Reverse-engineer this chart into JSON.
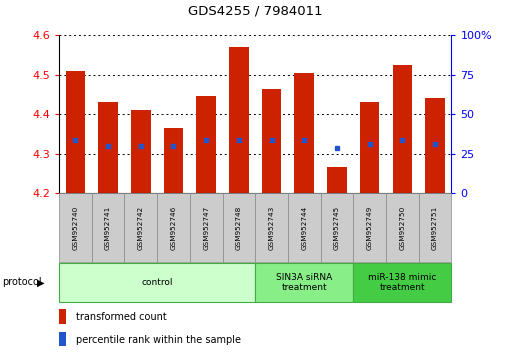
{
  "title": "GDS4255 / 7984011",
  "samples": [
    "GSM952740",
    "GSM952741",
    "GSM952742",
    "GSM952746",
    "GSM952747",
    "GSM952748",
    "GSM952743",
    "GSM952744",
    "GSM952745",
    "GSM952749",
    "GSM952750",
    "GSM952751"
  ],
  "red_values": [
    4.51,
    4.43,
    4.41,
    4.365,
    4.445,
    4.57,
    4.465,
    4.505,
    4.265,
    4.43,
    4.525,
    4.44
  ],
  "blue_values": [
    4.335,
    4.32,
    4.32,
    4.32,
    4.335,
    4.335,
    4.335,
    4.335,
    4.315,
    4.325,
    4.335,
    4.325
  ],
  "ymin": 4.2,
  "ymax": 4.6,
  "yticks": [
    4.2,
    4.3,
    4.4,
    4.5,
    4.6
  ],
  "right_yticks": [
    0,
    25,
    50,
    75,
    100
  ],
  "bar_color": "#cc2200",
  "dot_color": "#2255cc",
  "bar_width": 0.6,
  "group_colors": [
    "#ccffcc",
    "#88ee88",
    "#44cc44"
  ],
  "group_labels": [
    "control",
    "SIN3A siRNA\ntreatment",
    "miR-138 mimic\ntreatment"
  ],
  "group_ranges": [
    [
      0,
      6
    ],
    [
      6,
      9
    ],
    [
      9,
      12
    ]
  ],
  "sample_box_color": "#cccccc",
  "legend_items": [
    {
      "color": "#cc2200",
      "label": "transformed count"
    },
    {
      "color": "#2255cc",
      "label": "percentile rank within the sample"
    }
  ]
}
